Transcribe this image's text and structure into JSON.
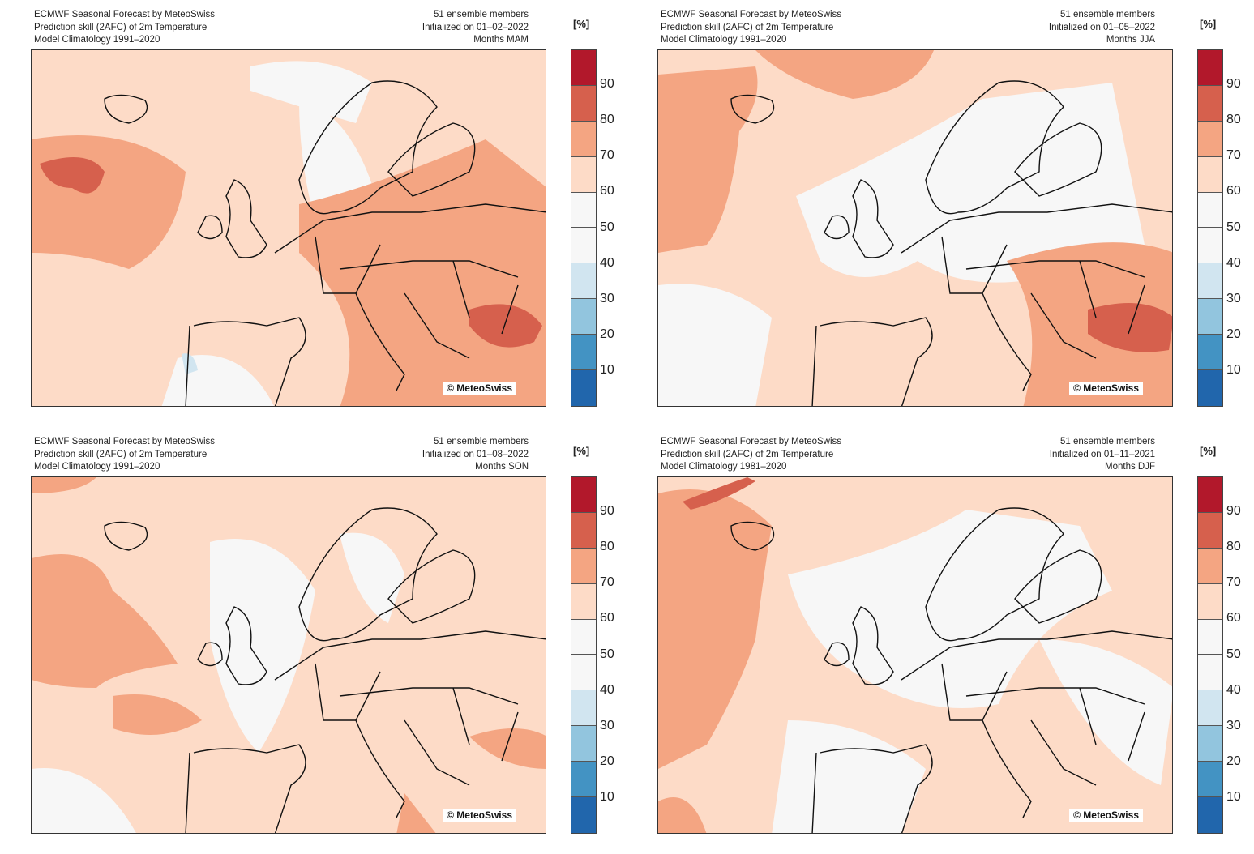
{
  "colorbar": {
    "unit": "[%]",
    "ticks": [
      "90",
      "80",
      "70",
      "60",
      "50",
      "40",
      "30",
      "20",
      "10"
    ],
    "colors": [
      "#b2182b",
      "#d6604d",
      "#f4a582",
      "#fddbc7",
      "#f7f7f7",
      "#f7f7f7",
      "#d1e5f0",
      "#92c5de",
      "#4393c3",
      "#2166ac"
    ]
  },
  "panels": [
    {
      "l1": "ECMWF Seasonal Forecast by MeteoSwiss",
      "l2": "Prediction skill (2AFC) of  2m Temperature",
      "l3": "Model Climatology 1991–2020",
      "r1": "51 ensemble members",
      "r2": "Initialized on 01–02–2022",
      "r3": "Months MAM",
      "copyright": "© MeteoSwiss",
      "base": "#fddbc7"
    },
    {
      "l1": "ECMWF Seasonal Forecast by MeteoSwiss",
      "l2": "Prediction skill (2AFC) of  2m Temperature",
      "l3": "Model Climatology 1991–2020",
      "r1": "51 ensemble members",
      "r2": "Initialized on 01–05–2022",
      "r3": "Months JJA",
      "copyright": "© MeteoSwiss",
      "base": "#fddbc7"
    },
    {
      "l1": "ECMWF Seasonal Forecast by MeteoSwiss",
      "l2": "Prediction skill (2AFC) of  2m Temperature",
      "l3": "Model Climatology 1991–2020",
      "r1": "51 ensemble members",
      "r2": "Initialized on 01–08–2022",
      "r3": "Months SON",
      "copyright": "© MeteoSwiss",
      "base": "#fddbc7"
    },
    {
      "l1": "ECMWF Seasonal Forecast by MeteoSwiss",
      "l2": "Prediction skill (2AFC) of  2m Temperature",
      "l3": "Model Climatology 1981–2020",
      "r1": "51 ensemble members",
      "r2": "Initialized on 01–11–2021",
      "r3": "Months DJF",
      "copyright": "© MeteoSwiss",
      "base": "#fddbc7"
    }
  ]
}
